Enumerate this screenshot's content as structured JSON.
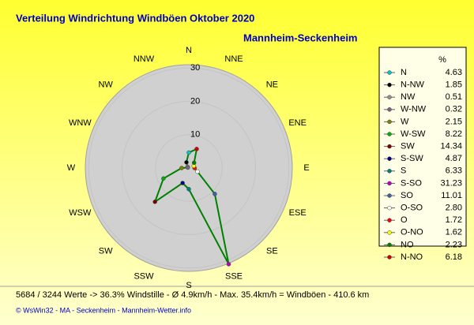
{
  "chart_data": {
    "type": "radar",
    "title": "Verteilung Windrichtung Windböen  Oktober 2020",
    "subtitle": "Mannheim-Seckenheim",
    "direction_labels": [
      "N",
      "NNE",
      "NE",
      "ENE",
      "E",
      "ESE",
      "SE",
      "SSE",
      "S",
      "SSW",
      "SW",
      "WSW",
      "W",
      "WNW",
      "NW",
      "NNW"
    ],
    "legend_title": "%",
    "categories": [
      "N",
      "N-NW",
      "NW",
      "W-NW",
      "W",
      "W-SW",
      "SW",
      "S-SW",
      "S",
      "S-SO",
      "SO",
      "O-SO",
      "O",
      "O-NO",
      "NO",
      "N-NO"
    ],
    "values": [
      4.63,
      1.85,
      0.51,
      0.32,
      2.15,
      8.22,
      14.34,
      4.87,
      6.33,
      31.23,
      11.01,
      2.8,
      1.72,
      1.62,
      2.23,
      6.18
    ],
    "value_labels": [
      "4.63",
      "1.85",
      "0.51",
      "0.32",
      "2.15",
      "8.22",
      "14.34",
      "4.87",
      "6.33",
      "31.23",
      "11.01",
      "2.80",
      "1.72",
      "1.62",
      "2.23",
      "6.18"
    ],
    "colors": [
      "#00c8c8",
      "#000000",
      "#909090",
      "#806080",
      "#808000",
      "#00b000",
      "#800000",
      "#000080",
      "#008080",
      "#c000c0",
      "#4060a0",
      "#ffffff",
      "#ff0000",
      "#ffff00",
      "#008000",
      "#d00000"
    ],
    "line_color": "#008000",
    "rlim": [
      0,
      31
    ],
    "rticks": [
      10,
      20,
      30
    ],
    "footer": [
      "5684 / 3244 Werte  -> 36.3% Windstille   -   Ø 4.9km/h  -  Max. 35.4km/h = Windböen   -   410.6 km",
      "© WsWin32  -  MA - Seckenheim  -  Mannheim-Wetter.info"
    ]
  }
}
